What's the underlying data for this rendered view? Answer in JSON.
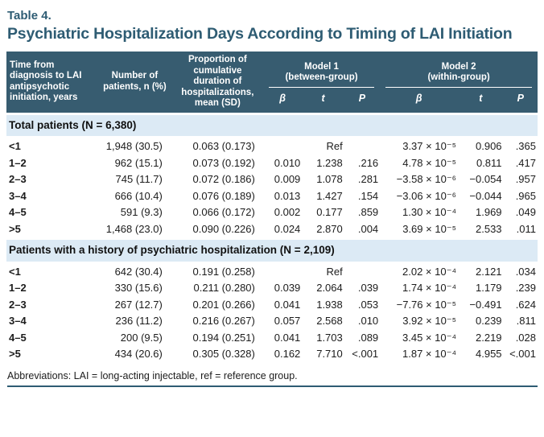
{
  "title": {
    "label": "Table 4.",
    "heading": "Psychiatric Hospitalization Days According to Timing of LAI Initiation"
  },
  "table": {
    "columns": {
      "col1": "Time from diagnosis to LAI antipsychotic initiation, years",
      "col2": "Number of patients, n (%)",
      "col3": "Proportion of cumulative duration of hospitalizations, mean (SD)",
      "model1": {
        "title": "Model 1",
        "subtitle": "(between-group)"
      },
      "model2": {
        "title": "Model 2",
        "subtitle": "(within-group)"
      },
      "stats": {
        "beta": "β",
        "t": "t",
        "p": "P"
      }
    },
    "sections": [
      {
        "header": "Total patients (N = 6,380)",
        "rows": [
          {
            "label": "<1",
            "n": "1,948 (30.5)",
            "prop": "0.063 (0.173)",
            "m1b": "",
            "m1t": "Ref",
            "m1p": "",
            "m2b": "3.37 × 10⁻⁵",
            "m2t": "0.906",
            "m2p": ".365"
          },
          {
            "label": "1–2",
            "n": "962 (15.1)",
            "prop": "0.073 (0.192)",
            "m1b": "0.010",
            "m1t": "1.238",
            "m1p": ".216",
            "m2b": "4.78 × 10⁻⁵",
            "m2t": "0.811",
            "m2p": ".417"
          },
          {
            "label": "2–3",
            "n": "745 (11.7)",
            "prop": "0.072 (0.186)",
            "m1b": "0.009",
            "m1t": "1.078",
            "m1p": ".281",
            "m2b": "−3.58 × 10⁻⁶",
            "m2t": "−0.054",
            "m2p": ".957"
          },
          {
            "label": "3–4",
            "n": "666 (10.4)",
            "prop": "0.076 (0.189)",
            "m1b": "0.013",
            "m1t": "1.427",
            "m1p": ".154",
            "m2b": "−3.06 × 10⁻⁶",
            "m2t": "−0.044",
            "m2p": ".965"
          },
          {
            "label": "4–5",
            "n": "591 (9.3)",
            "prop": "0.066 (0.172)",
            "m1b": "0.002",
            "m1t": "0.177",
            "m1p": ".859",
            "m2b": "1.30 × 10⁻⁴",
            "m2t": "1.969",
            "m2p": ".049"
          },
          {
            "label": ">5",
            "n": "1,468 (23.0)",
            "prop": "0.090 (0.226)",
            "m1b": "0.024",
            "m1t": "2.870",
            "m1p": ".004",
            "m2b": "3.69 × 10⁻⁵",
            "m2t": "2.533",
            "m2p": ".011"
          }
        ]
      },
      {
        "header": "Patients with a history of psychiatric hospitalization (N = 2,109)",
        "rows": [
          {
            "label": "<1",
            "n": "642 (30.4)",
            "prop": "0.191 (0.258)",
            "m1b": "",
            "m1t": "Ref",
            "m1p": "",
            "m2b": "2.02 × 10⁻⁴",
            "m2t": "2.121",
            "m2p": ".034"
          },
          {
            "label": "1–2",
            "n": "330 (15.6)",
            "prop": "0.211 (0.280)",
            "m1b": "0.039",
            "m1t": "2.064",
            "m1p": ".039",
            "m2b": "1.74 × 10⁻⁴",
            "m2t": "1.179",
            "m2p": ".239"
          },
          {
            "label": "2–3",
            "n": "267 (12.7)",
            "prop": "0.201 (0.266)",
            "m1b": "0.041",
            "m1t": "1.938",
            "m1p": ".053",
            "m2b": "−7.76 × 10⁻⁵",
            "m2t": "−0.491",
            "m2p": ".624"
          },
          {
            "label": "3–4",
            "n": "236 (11.2)",
            "prop": "0.216 (0.267)",
            "m1b": "0.057",
            "m1t": "2.568",
            "m1p": ".010",
            "m2b": "3.92 × 10⁻⁵",
            "m2t": "0.239",
            "m2p": ".811"
          },
          {
            "label": "4–5",
            "n": "200 (9.5)",
            "prop": "0.194 (0.251)",
            "m1b": "0.041",
            "m1t": "1.703",
            "m1p": ".089",
            "m2b": "3.45 × 10⁻⁴",
            "m2t": "2.219",
            "m2p": ".028"
          },
          {
            "label": ">5",
            "n": "434 (20.6)",
            "prop": "0.305 (0.328)",
            "m1b": "0.162",
            "m1t": "7.710",
            "m1p": "<.001",
            "m2b": "1.87 × 10⁻⁴",
            "m2t": "4.955",
            "m2p": "<.001"
          }
        ]
      }
    ]
  },
  "footer": {
    "abbreviations": "Abbreviations: LAI = long-acting injectable, ref = reference group."
  },
  "colors": {
    "header_bg": "#375C70",
    "section_bg": "#DCEAF5",
    "title_text": "#2E5C73",
    "body_text": "#1C1C1C",
    "rule": "#2E5C73"
  }
}
